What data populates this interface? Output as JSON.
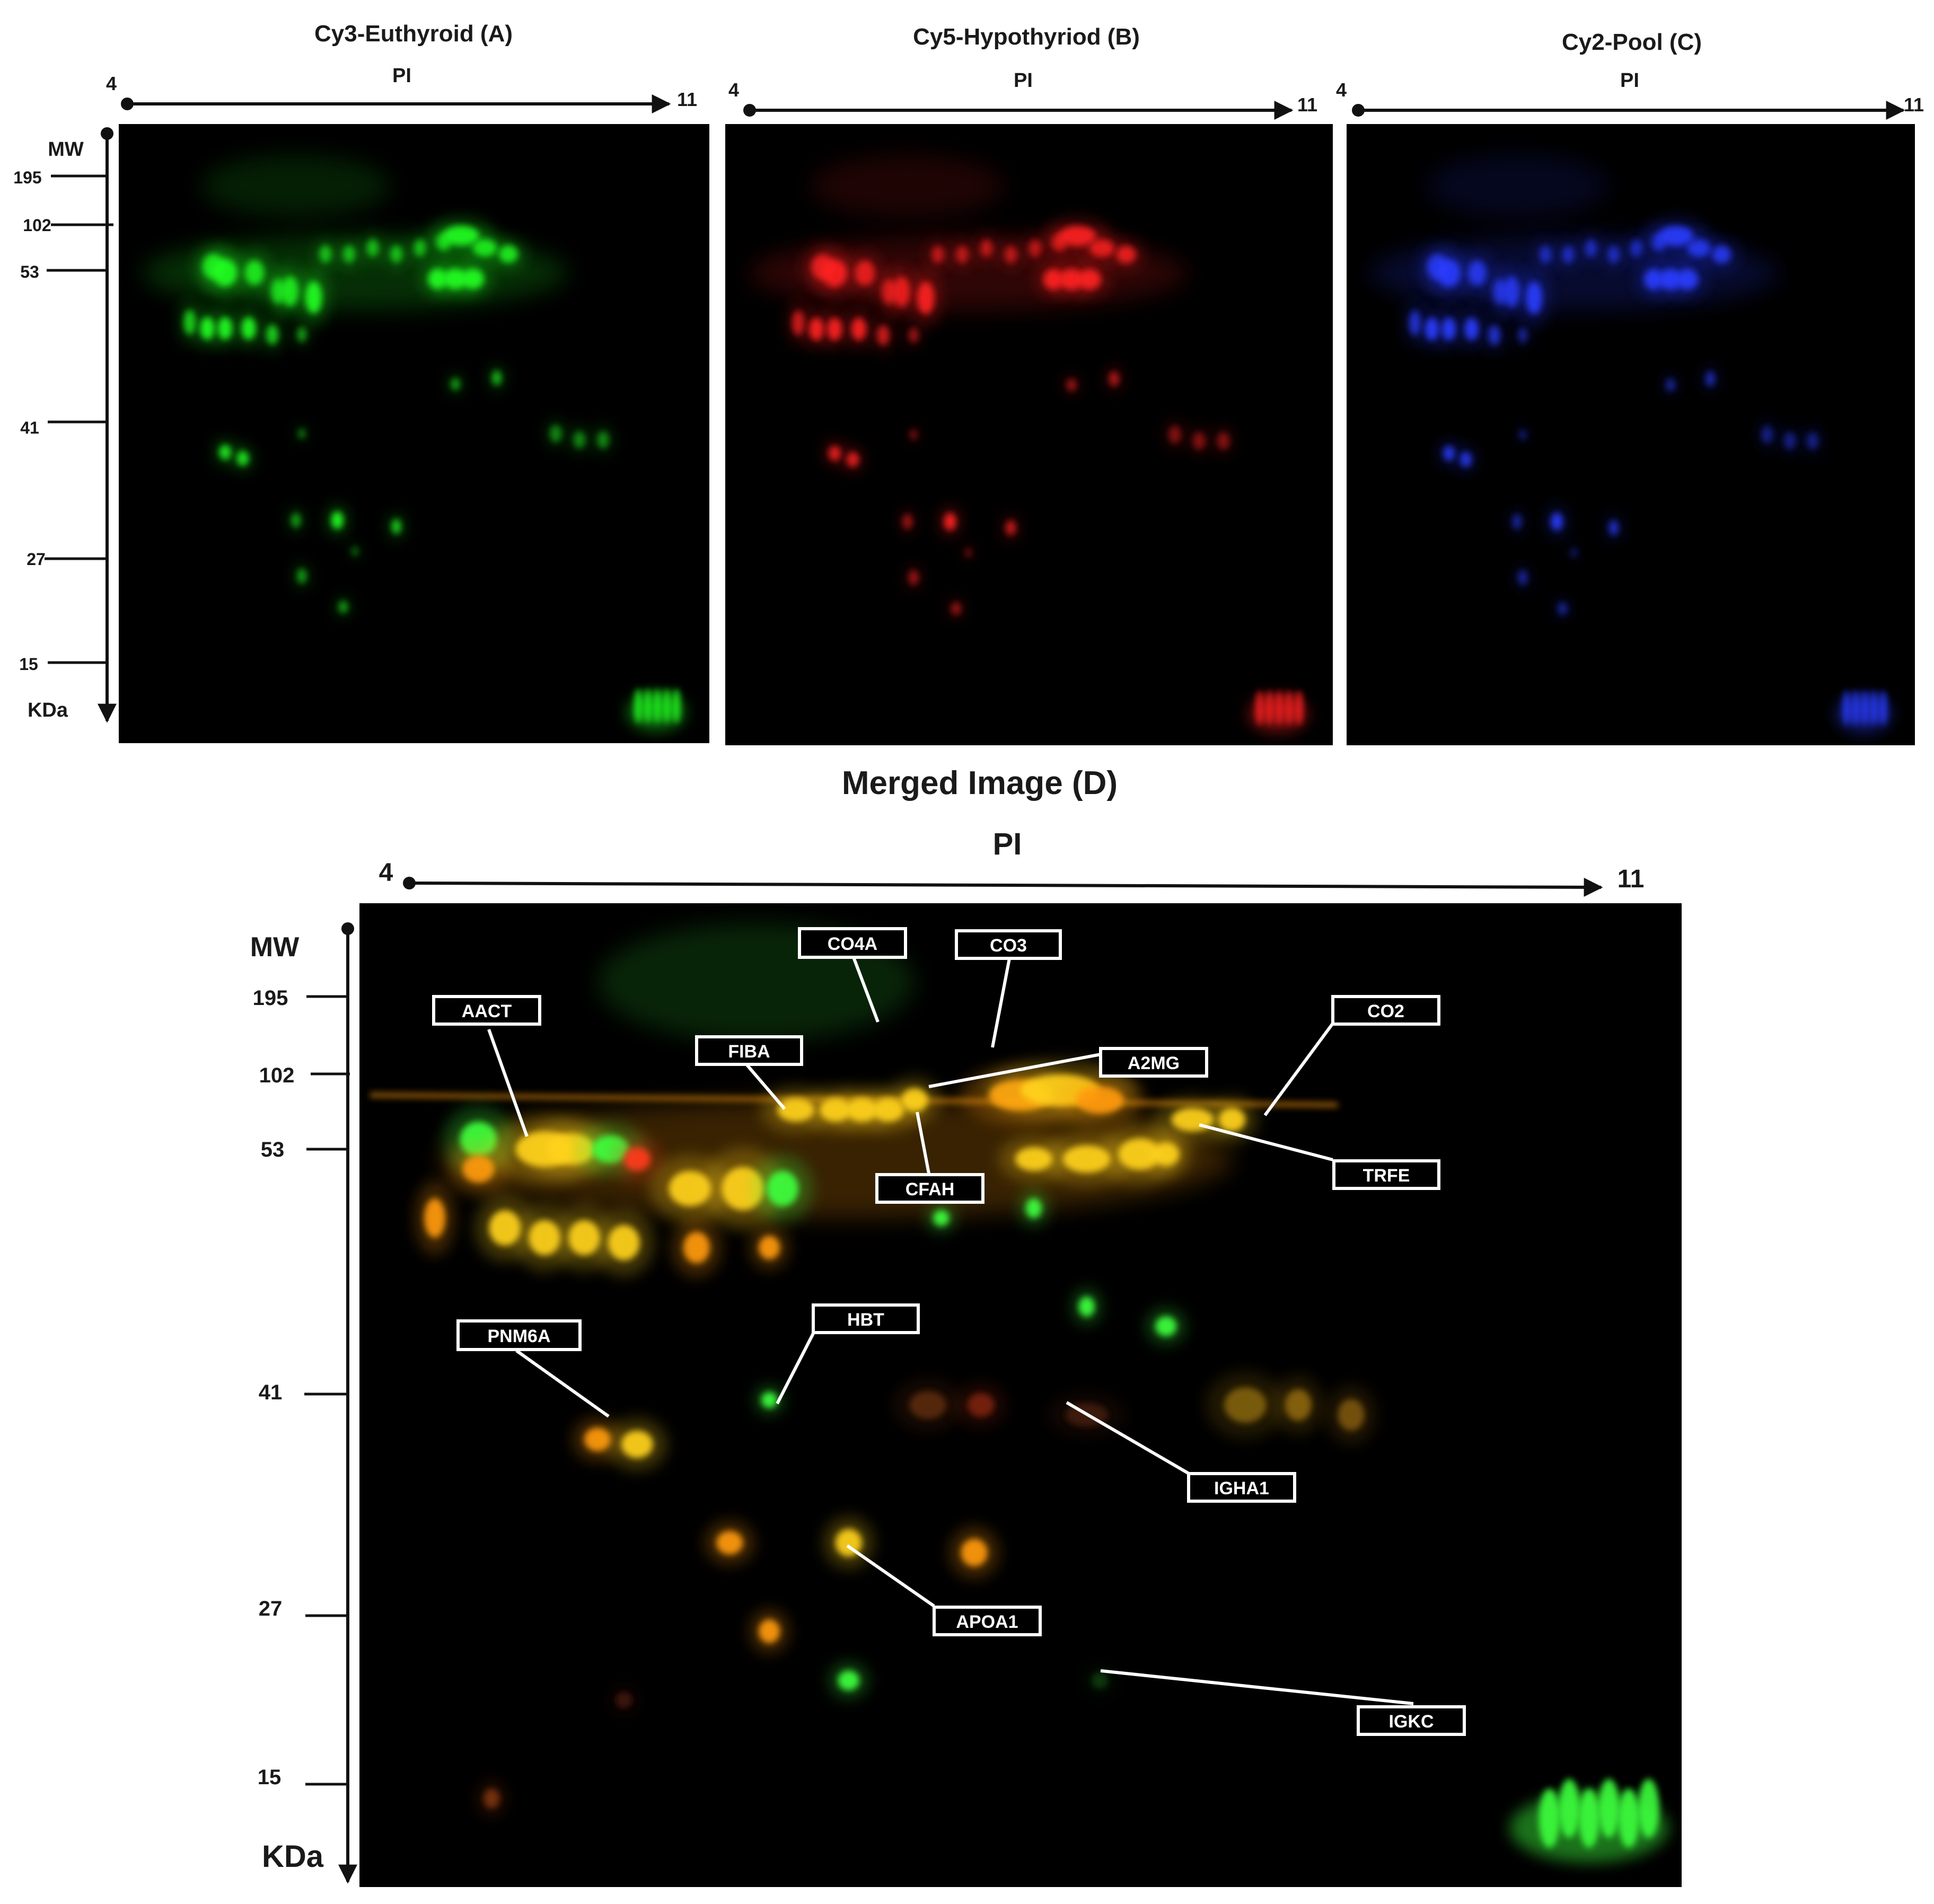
{
  "panels": {
    "A": {
      "title": "Cy3-Euthyroid (A)",
      "axis_label": "PI",
      "ph_min": "4",
      "ph_max": "11",
      "color": "#22ff22"
    },
    "B": {
      "title": "Cy5-Hypothyriod (B)",
      "axis_label": "PI",
      "ph_min": "4",
      "ph_max": "11",
      "color": "#ff2020"
    },
    "C": {
      "title": "Cy2-Pool (C)",
      "axis_label": "PI",
      "ph_min": "4",
      "ph_max": "11",
      "color": "#2a3cff"
    },
    "D": {
      "title": "Merged Image (D)",
      "axis_label": "PI",
      "ph_min": "4",
      "ph_max": "11",
      "color": "#ffd21e"
    }
  },
  "mw_axis": {
    "title": "MW",
    "unit": "KDa",
    "ticks": [
      "195",
      "102",
      "53",
      "41",
      "27",
      "15"
    ]
  },
  "protein_labels": [
    "CO4A",
    "CO3",
    "AACT",
    "CO2",
    "FIBA",
    "A2MG",
    "CFAH",
    "TRFE",
    "PNM6A",
    "HBT",
    "IGHA1",
    "APOA1",
    "IGKC"
  ]
}
